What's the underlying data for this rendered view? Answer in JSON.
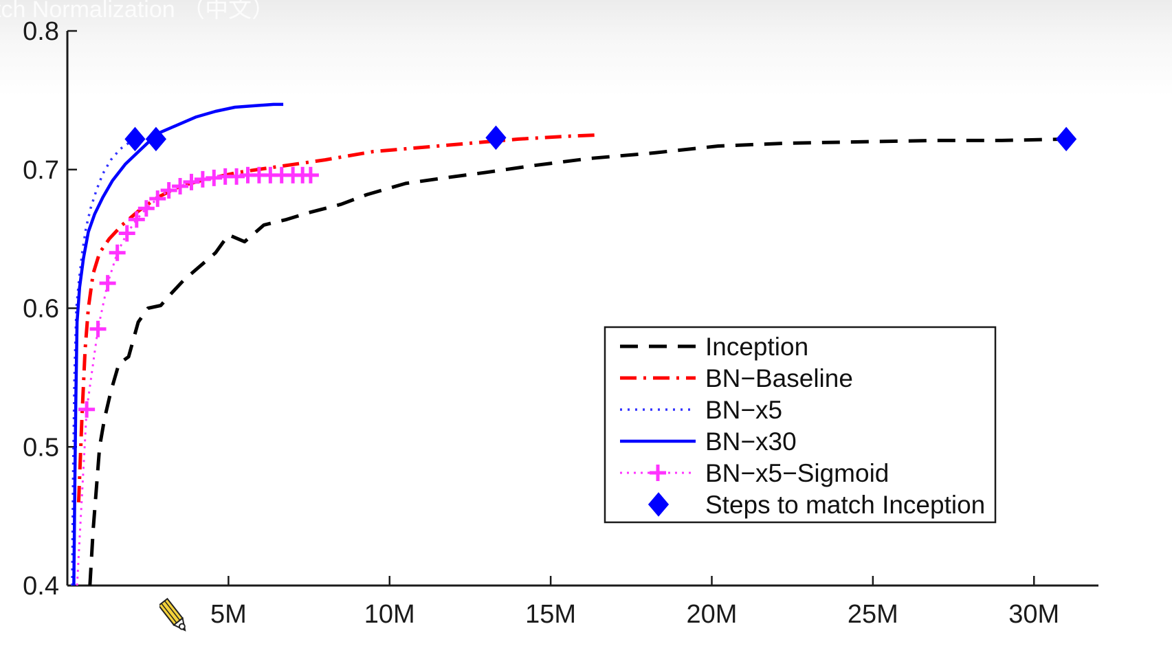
{
  "page": {
    "header_text": "tch Normalization （中文）"
  },
  "chart_data": {
    "type": "line",
    "title": "",
    "xlabel": "",
    "ylabel": "",
    "xlim": [
      0,
      32000000
    ],
    "ylim": [
      0.4,
      0.8
    ],
    "x_ticks": [
      5000000,
      10000000,
      15000000,
      20000000,
      25000000,
      30000000
    ],
    "x_tick_labels": [
      "5M",
      "10M",
      "15M",
      "20M",
      "25M",
      "30M"
    ],
    "y_ticks": [
      0.4,
      0.5,
      0.6,
      0.7,
      0.8
    ],
    "y_tick_labels": [
      "0.4",
      "0.5",
      "0.6",
      "0.7",
      "0.8"
    ],
    "legend_position": "bottom-right",
    "series": [
      {
        "name": "Inception",
        "color": "#000000",
        "style": "dashed",
        "x": [
          700000,
          800000,
          900000,
          1000000,
          1150000,
          1350000,
          1600000,
          1900000,
          2200000,
          2500000,
          2900000,
          3200000,
          3600000,
          4000000,
          4600000,
          5000000,
          5500000,
          6100000,
          6800000,
          7500000,
          8500000,
          9300000,
          10500000,
          11700000,
          13000000,
          14500000,
          16200000,
          18200000,
          20200000,
          22300000,
          24600000,
          27000000,
          29000000,
          31000000
        ],
        "y": [
          0.4,
          0.44,
          0.47,
          0.5,
          0.52,
          0.54,
          0.56,
          0.565,
          0.59,
          0.6,
          0.602,
          0.61,
          0.62,
          0.628,
          0.64,
          0.653,
          0.648,
          0.66,
          0.664,
          0.669,
          0.675,
          0.682,
          0.69,
          0.694,
          0.698,
          0.703,
          0.708,
          0.712,
          0.717,
          0.719,
          0.72,
          0.721,
          0.721,
          0.722
        ]
      },
      {
        "name": "BN-Baseline",
        "color": "#ff0000",
        "style": "dashdot",
        "x": [
          350000,
          450000,
          550000,
          650000,
          800000,
          1000000,
          1300000,
          1700000,
          2200000,
          2800000,
          3500000,
          4300000,
          5300000,
          6500000,
          8000000,
          9500000,
          11000000,
          12500000,
          14000000,
          15500000,
          16500000
        ],
        "y": [
          0.46,
          0.52,
          0.57,
          0.6,
          0.625,
          0.64,
          0.65,
          0.66,
          0.67,
          0.68,
          0.688,
          0.693,
          0.698,
          0.702,
          0.707,
          0.713,
          0.716,
          0.719,
          0.722,
          0.724,
          0.725
        ]
      },
      {
        "name": "BN-x5",
        "color": "#3333ff",
        "style": "dotted",
        "x": [
          150000,
          180000,
          220000,
          280000,
          360000,
          460000,
          580000,
          720000,
          900000,
          1100000,
          1350000,
          1650000,
          1950000
        ],
        "y": [
          0.4,
          0.48,
          0.55,
          0.6,
          0.62,
          0.64,
          0.658,
          0.672,
          0.685,
          0.697,
          0.707,
          0.715,
          0.72
        ]
      },
      {
        "name": "BN-x30",
        "color": "#0000ff",
        "style": "solid",
        "x": [
          200000,
          230000,
          260000,
          300000,
          380000,
          500000,
          650000,
          850000,
          1100000,
          1400000,
          1800000,
          2300000,
          2800000,
          3400000,
          4000000,
          4600000,
          5200000,
          5800000,
          6400000,
          6700000
        ],
        "y": [
          0.4,
          0.47,
          0.53,
          0.59,
          0.615,
          0.636,
          0.655,
          0.668,
          0.68,
          0.692,
          0.704,
          0.715,
          0.726,
          0.732,
          0.738,
          0.742,
          0.745,
          0.746,
          0.747,
          0.747
        ]
      },
      {
        "name": "BN-x5-Sigmoid",
        "color": "#ff33ff",
        "style": "dotted-plus",
        "x": [
          300000,
          600000,
          950000,
          1250000,
          1550000,
          1850000,
          2150000,
          2450000,
          2800000,
          3150000,
          3500000,
          3850000,
          4200000,
          4550000,
          4900000,
          5250000,
          5600000,
          5950000,
          6300000,
          6650000,
          7000000,
          7300000,
          7550000
        ],
        "y": [
          0.4,
          0.527,
          0.585,
          0.618,
          0.64,
          0.654,
          0.664,
          0.672,
          0.679,
          0.685,
          0.688,
          0.691,
          0.693,
          0.694,
          0.695,
          0.695,
          0.696,
          0.696,
          0.696,
          0.696,
          0.696,
          0.696,
          0.696
        ]
      },
      {
        "name": "Steps to match Inception",
        "color": "#0000ff",
        "style": "diamond",
        "x": [
          2100000,
          2750000,
          13300000,
          31000000
        ],
        "y": [
          0.722,
          0.722,
          0.723,
          0.722
        ]
      }
    ]
  }
}
